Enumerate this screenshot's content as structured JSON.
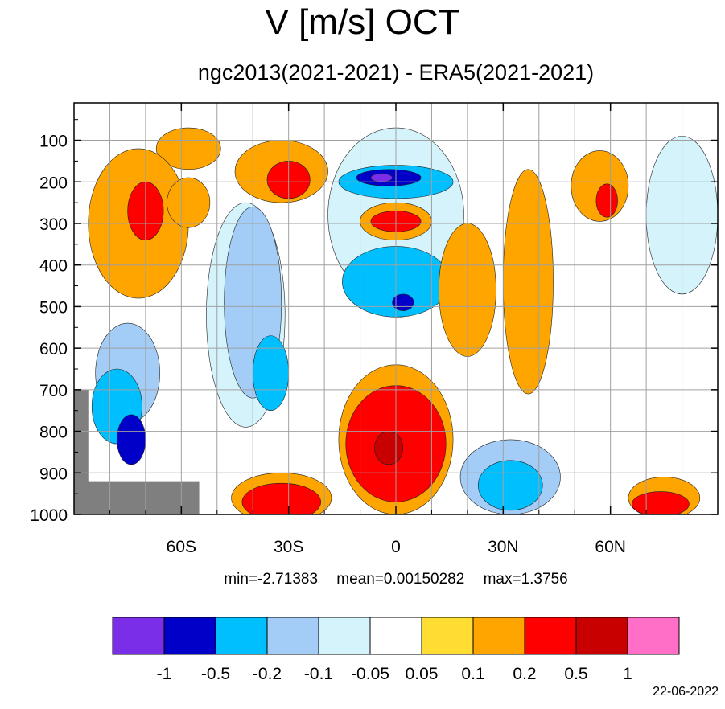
{
  "title": "V [m/s] OCT",
  "subtitle": "ngc2013(2021-2021) - ERA5(2021-2021)",
  "stats": {
    "min": "min=-2.71383",
    "mean": "mean=0.00150282",
    "max": "max=1.3756"
  },
  "date": "22-06-2022",
  "chart_data": {
    "type": "contour",
    "x_axis": {
      "range": [
        -90,
        90
      ],
      "ticks": [
        -60,
        -30,
        0,
        30,
        60
      ],
      "tick_labels": [
        "60S",
        "30S",
        "0",
        "30N",
        "60N"
      ]
    },
    "y_axis": {
      "range": [
        1000,
        10
      ],
      "ticks": [
        100,
        200,
        300,
        400,
        500,
        600,
        700,
        800,
        900,
        1000
      ],
      "tick_labels": [
        "100",
        "200",
        "300",
        "400",
        "500",
        "600",
        "700",
        "800",
        "900",
        "1000"
      ],
      "reversed": true
    },
    "grid": true,
    "colorbar": {
      "levels": [
        "-1",
        "-0.5",
        "-0.2",
        "-0.1",
        "-0.05",
        "0.05",
        "0.1",
        "0.2",
        "0.5",
        "1"
      ],
      "colors": [
        "#7b2ee8",
        "#0000c8",
        "#00bfff",
        "#a3cdf6",
        "#d4f3fb",
        "#ffffff",
        "#ffdd33",
        "#ffa500",
        "#ff0000",
        "#c80000",
        "#ff6ec7"
      ]
    },
    "missing_color": "#7f7f7f",
    "blobs": [
      {
        "lat": -58,
        "p": 120,
        "rx": 9,
        "ry": 50,
        "value": 0.15
      },
      {
        "lat": -72,
        "p": 300,
        "rx": 14,
        "ry": 180,
        "value": 0.15
      },
      {
        "lat": -70,
        "p": 270,
        "rx": 5,
        "ry": 70,
        "value": 0.3
      },
      {
        "lat": -58,
        "p": 250,
        "rx": 6,
        "ry": 60,
        "value": 0.15
      },
      {
        "lat": -75,
        "p": 660,
        "rx": 9,
        "ry": 120,
        "value": -0.15
      },
      {
        "lat": -78,
        "p": 740,
        "rx": 7,
        "ry": 90,
        "value": -0.3
      },
      {
        "lat": -74,
        "p": 820,
        "rx": 4,
        "ry": 60,
        "value": -0.7
      },
      {
        "lat": -42,
        "p": 520,
        "rx": 11,
        "ry": 270,
        "value": -0.07
      },
      {
        "lat": -40,
        "p": 490,
        "rx": 8,
        "ry": 230,
        "value": -0.15
      },
      {
        "lat": -35,
        "p": 660,
        "rx": 5,
        "ry": 90,
        "value": -0.3
      },
      {
        "lat": -32,
        "p": 175,
        "rx": 13,
        "ry": 75,
        "value": 0.15
      },
      {
        "lat": -30,
        "p": 195,
        "rx": 6,
        "ry": 45,
        "value": 0.3
      },
      {
        "lat": 0,
        "p": 280,
        "rx": 19,
        "ry": 210,
        "value": -0.08
      },
      {
        "lat": 0,
        "p": 200,
        "rx": 16,
        "ry": 40,
        "value": -0.3
      },
      {
        "lat": -2,
        "p": 190,
        "rx": 9,
        "ry": 20,
        "value": -0.7
      },
      {
        "lat": -4,
        "p": 190,
        "rx": 3,
        "ry": 10,
        "value": -1.5
      },
      {
        "lat": 0,
        "p": 295,
        "rx": 10,
        "ry": 45,
        "value": 0.15
      },
      {
        "lat": 0,
        "p": 295,
        "rx": 7,
        "ry": 25,
        "value": 0.3
      },
      {
        "lat": 0,
        "p": 440,
        "rx": 15,
        "ry": 85,
        "value": -0.3
      },
      {
        "lat": 2,
        "p": 490,
        "rx": 3,
        "ry": 20,
        "value": -0.7
      },
      {
        "lat": 0,
        "p": 820,
        "rx": 16,
        "ry": 180,
        "value": 0.15
      },
      {
        "lat": 0,
        "p": 830,
        "rx": 14,
        "ry": 140,
        "value": 0.3
      },
      {
        "lat": -2,
        "p": 840,
        "rx": 4,
        "ry": 40,
        "value": 0.7
      },
      {
        "lat": -32,
        "p": 960,
        "rx": 14,
        "ry": 60,
        "value": 0.15
      },
      {
        "lat": -32,
        "p": 970,
        "rx": 11,
        "ry": 45,
        "value": 0.3
      },
      {
        "lat": 20,
        "p": 460,
        "rx": 8,
        "ry": 160,
        "value": 0.15
      },
      {
        "lat": 37,
        "p": 440,
        "rx": 7,
        "ry": 270,
        "value": 0.15
      },
      {
        "lat": 57,
        "p": 210,
        "rx": 8,
        "ry": 85,
        "value": 0.15
      },
      {
        "lat": 59,
        "p": 245,
        "rx": 3,
        "ry": 40,
        "value": 0.3
      },
      {
        "lat": 80,
        "p": 280,
        "rx": 10,
        "ry": 190,
        "value": -0.08
      },
      {
        "lat": 32,
        "p": 910,
        "rx": 14,
        "ry": 90,
        "value": -0.15
      },
      {
        "lat": 32,
        "p": 930,
        "rx": 9,
        "ry": 60,
        "value": -0.3
      },
      {
        "lat": 75,
        "p": 960,
        "rx": 10,
        "ry": 50,
        "value": 0.15
      },
      {
        "lat": 74,
        "p": 975,
        "rx": 8,
        "ry": 30,
        "value": 0.3
      }
    ]
  }
}
